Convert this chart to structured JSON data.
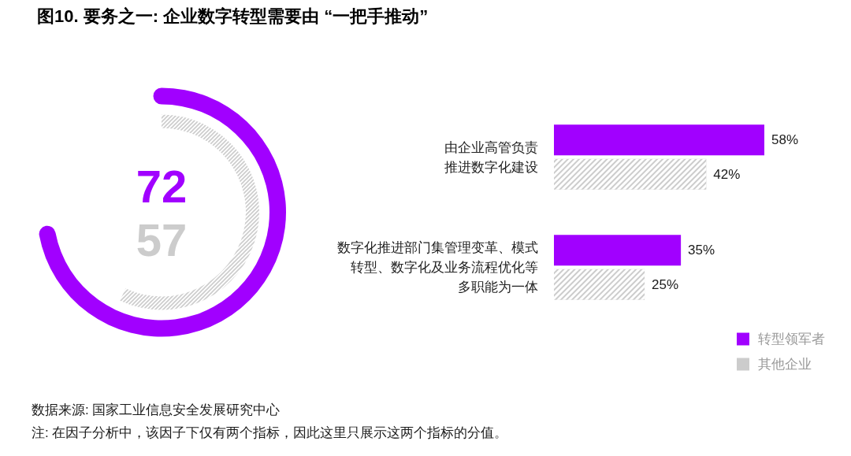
{
  "chart_data": [
    {
      "type": "other",
      "title": "图10. 要务之一: 企业数字转型需要由 “一把手推动”",
      "categories": [
        null,
        null
      ],
      "values": [
        72,
        57
      ],
      "colors": [
        "#a100ff",
        "#cccccc"
      ],
      "data_labels": true,
      "annotations": [
        "数据来源: 国家工业信息安全发展研究中心",
        "注: 在因子分析中，该因子下仅有两个指标，因此这里只展示这两个指标的分值。"
      ]
    },
    {
      "type": "bar",
      "orientation": "horizontal",
      "categories": [
        "由企业高管负责推进数字化建设",
        "数字化推进部门集管理变革、模式转型、数字化及业务流程优化等多职能为一体"
      ],
      "series": [
        {
          "name": "转型领军者",
          "color": "#a100ff",
          "values": [
            58,
            35
          ],
          "value_labels": [
            "58%",
            "35%"
          ]
        },
        {
          "name": "其他企业",
          "color": "#cccccc",
          "values": [
            42,
            25
          ],
          "value_labels": [
            "42%",
            "25%"
          ]
        }
      ],
      "legend": "bottom right"
    }
  ]
}
